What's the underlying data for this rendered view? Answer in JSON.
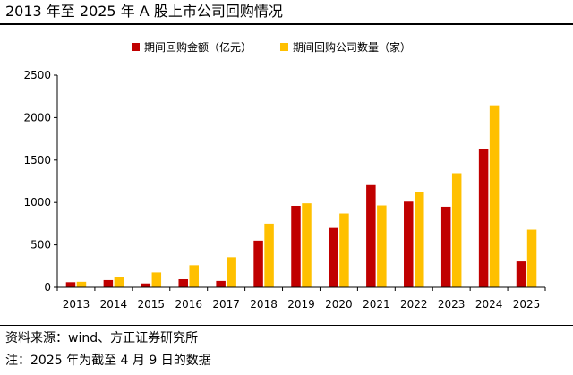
{
  "title": "2013 年至 2025 年 A 股上市公司回购情况",
  "notes": {
    "source": "资料来源：wind、方正证券研究所",
    "note": "注：2025 年为截至 4 月 9 日的数据"
  },
  "chart_data": {
    "type": "bar",
    "categories": [
      "2013",
      "2014",
      "2015",
      "2016",
      "2017",
      "2018",
      "2019",
      "2020",
      "2021",
      "2022",
      "2023",
      "2024",
      "2025"
    ],
    "series": [
      {
        "name": "期间回购金额（亿元）",
        "color": "#C00000",
        "values": [
          60,
          85,
          45,
          95,
          75,
          550,
          960,
          700,
          1205,
          1010,
          950,
          1635,
          305
        ]
      },
      {
        "name": "期间回购公司数量（家）",
        "color": "#FFC000",
        "values": [
          65,
          125,
          175,
          260,
          355,
          750,
          990,
          870,
          965,
          1125,
          1345,
          2145,
          680
        ]
      }
    ],
    "ylim": [
      0,
      2500
    ],
    "yticks": [
      "0",
      "500",
      "1000",
      "1500",
      "2000",
      "2500"
    ],
    "grid": false,
    "legend": "top-center"
  }
}
